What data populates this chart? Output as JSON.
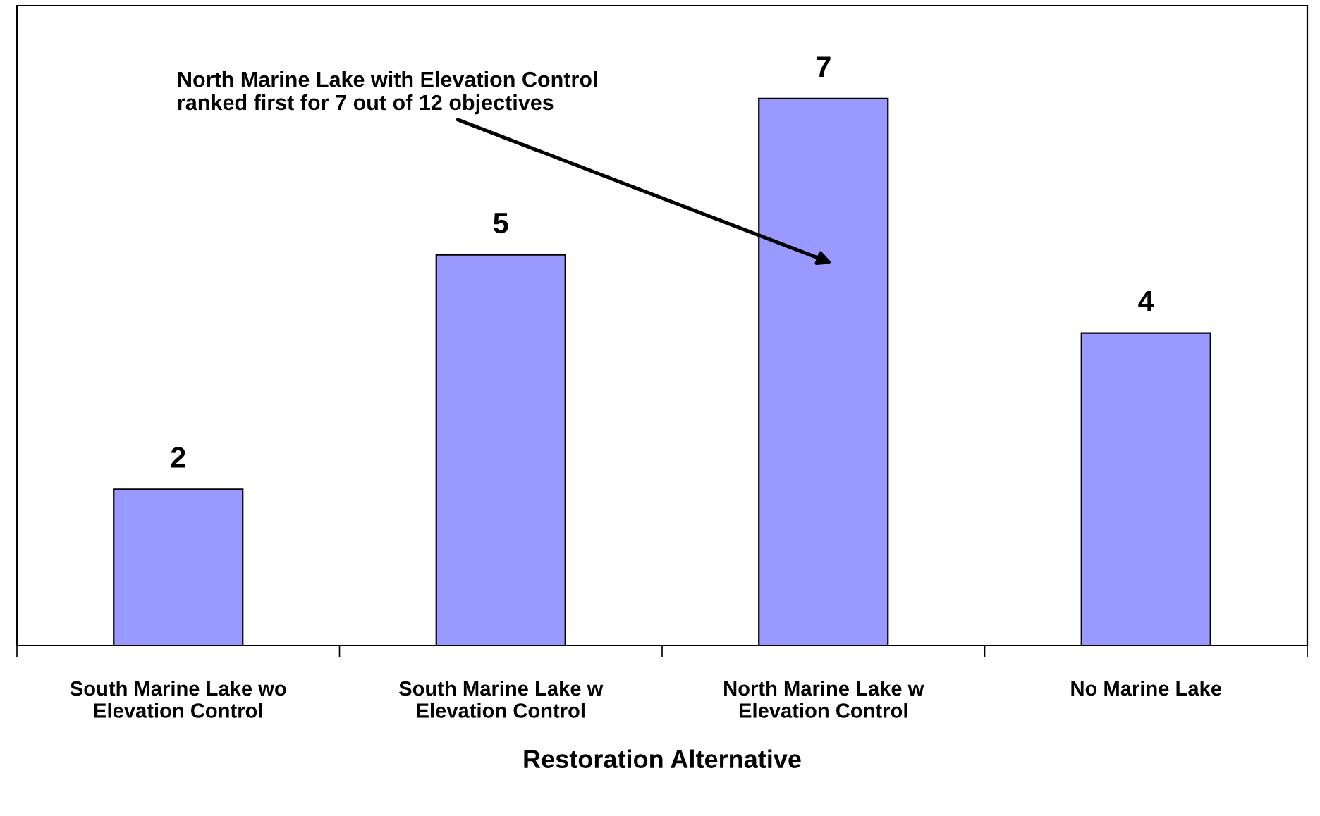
{
  "chart_data": {
    "type": "bar",
    "xlabel": "Restoration Alternative",
    "categories": [
      "South Marine Lake wo\nElevation Control",
      "South Marine Lake w\nElevation Control",
      "North Marine Lake w\nElevation Control",
      "No Marine Lake"
    ],
    "values": [
      2,
      5,
      7,
      4
    ],
    "color": "#9999ff",
    "data_labels": true,
    "grid": false,
    "legend": false,
    "annotations": [
      "North Marine Lake with Elevation Control\nranked first for 7 out of 12 objectives"
    ]
  }
}
